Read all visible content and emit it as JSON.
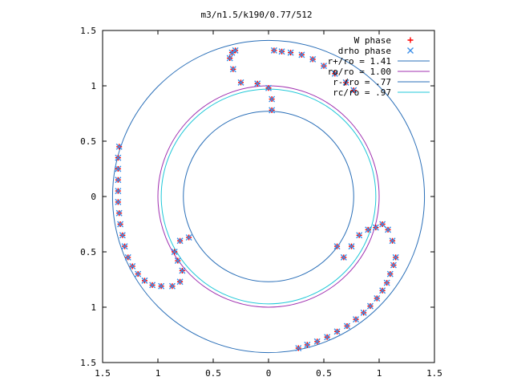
{
  "chart_data": {
    "type": "scatter",
    "title": "m3/n1.5/k190/0.77/512",
    "xlabel": "",
    "ylabel": "",
    "xlim": [
      -1.5,
      1.5
    ],
    "ylim": [
      -1.5,
      1.5
    ],
    "x_ticks": [
      -1.5,
      -1,
      -0.5,
      0,
      0.5,
      1,
      1.5
    ],
    "x_tick_labels": [
      "1.5",
      "1",
      "0.5",
      "0",
      "0.5",
      "1",
      "1.5"
    ],
    "y_ticks": [
      1.5,
      1,
      0.5,
      0,
      -0.5,
      -1,
      -1.5
    ],
    "y_tick_labels": [
      "1.5",
      "1",
      "0.5",
      "0",
      "0.5",
      "1",
      "1.5"
    ],
    "grid": false,
    "legend_position": "top-right",
    "legend": [
      {
        "label": "W phase",
        "marker": "+",
        "color": "#ff0000"
      },
      {
        "label": "drho phase",
        "marker": "x",
        "color": "#3d8fe8"
      },
      {
        "label": "r+/ro = 1.41",
        "style": "line",
        "color": "#2a6fb8"
      },
      {
        "label": "ro/ro = 1.00",
        "style": "line",
        "color": "#a030b0"
      },
      {
        "label": "r-/ro = .77",
        "style": "line",
        "color": "#2a6fb8"
      },
      {
        "label": "rc/ro = .97",
        "style": "line",
        "color": "#20c8d8"
      }
    ],
    "circles": [
      {
        "r": 1.41,
        "color": "#2a6fb8"
      },
      {
        "r": 1.0,
        "color": "#a030b0"
      },
      {
        "r": 0.77,
        "color": "#2a6fb8"
      },
      {
        "r": 0.97,
        "color": "#20c8d8"
      }
    ],
    "series": [
      {
        "name": "W phase",
        "color": "#ff0000",
        "marker": "+",
        "points": [
          [
            0.05,
            1.32
          ],
          [
            0.12,
            1.31
          ],
          [
            0.2,
            1.3
          ],
          [
            0.3,
            1.28
          ],
          [
            0.4,
            1.24
          ],
          [
            0.5,
            1.18
          ],
          [
            0.6,
            1.11
          ],
          [
            0.7,
            1.03
          ],
          [
            0.77,
            0.96
          ],
          [
            -0.33,
            1.3
          ],
          [
            -0.3,
            1.32
          ],
          [
            -0.35,
            1.25
          ],
          [
            -0.32,
            1.15
          ],
          [
            -0.25,
            1.03
          ],
          [
            -0.1,
            1.02
          ],
          [
            0.0,
            0.98
          ],
          [
            0.03,
            0.88
          ],
          [
            0.03,
            0.78
          ],
          [
            -1.35,
            0.45
          ],
          [
            -1.36,
            0.35
          ],
          [
            -1.36,
            0.25
          ],
          [
            -1.36,
            0.15
          ],
          [
            -1.36,
            0.05
          ],
          [
            -1.36,
            -0.05
          ],
          [
            -1.35,
            -0.15
          ],
          [
            -1.34,
            -0.25
          ],
          [
            -1.32,
            -0.35
          ],
          [
            -1.3,
            -0.45
          ],
          [
            -1.27,
            -0.55
          ],
          [
            -1.23,
            -0.63
          ],
          [
            -1.18,
            -0.7
          ],
          [
            -1.12,
            -0.76
          ],
          [
            -1.05,
            -0.8
          ],
          [
            -0.97,
            -0.81
          ],
          [
            -0.87,
            -0.81
          ],
          [
            -0.8,
            -0.77
          ],
          [
            -0.78,
            -0.67
          ],
          [
            -0.82,
            -0.58
          ],
          [
            -0.85,
            -0.5
          ],
          [
            -0.8,
            -0.4
          ],
          [
            -0.72,
            -0.37
          ],
          [
            1.15,
            -0.55
          ],
          [
            1.13,
            -0.62
          ],
          [
            1.1,
            -0.7
          ],
          [
            1.07,
            -0.78
          ],
          [
            1.03,
            -0.85
          ],
          [
            0.98,
            -0.92
          ],
          [
            0.92,
            -0.99
          ],
          [
            0.86,
            -1.05
          ],
          [
            0.79,
            -1.11
          ],
          [
            0.71,
            -1.17
          ],
          [
            0.62,
            -1.22
          ],
          [
            0.53,
            -1.27
          ],
          [
            0.44,
            -1.31
          ],
          [
            0.35,
            -1.34
          ],
          [
            0.27,
            -1.37
          ],
          [
            0.62,
            -0.45
          ],
          [
            0.68,
            -0.55
          ],
          [
            0.75,
            -0.45
          ],
          [
            0.82,
            -0.35
          ],
          [
            0.9,
            -0.3
          ],
          [
            0.97,
            -0.28
          ],
          [
            1.03,
            -0.25
          ],
          [
            1.08,
            -0.3
          ],
          [
            1.12,
            -0.4
          ]
        ]
      },
      {
        "name": "drho phase",
        "color": "#3d8fe8",
        "marker": "x",
        "points": [
          [
            0.05,
            1.32
          ],
          [
            0.12,
            1.31
          ],
          [
            0.2,
            1.3
          ],
          [
            0.3,
            1.28
          ],
          [
            0.4,
            1.24
          ],
          [
            0.5,
            1.18
          ],
          [
            0.6,
            1.11
          ],
          [
            0.7,
            1.03
          ],
          [
            0.77,
            0.96
          ],
          [
            -0.33,
            1.3
          ],
          [
            -0.3,
            1.32
          ],
          [
            -0.35,
            1.25
          ],
          [
            -0.32,
            1.15
          ],
          [
            -0.25,
            1.03
          ],
          [
            -0.1,
            1.02
          ],
          [
            0.0,
            0.98
          ],
          [
            0.03,
            0.88
          ],
          [
            0.03,
            0.78
          ],
          [
            -1.35,
            0.45
          ],
          [
            -1.36,
            0.35
          ],
          [
            -1.36,
            0.25
          ],
          [
            -1.36,
            0.15
          ],
          [
            -1.36,
            0.05
          ],
          [
            -1.36,
            -0.05
          ],
          [
            -1.35,
            -0.15
          ],
          [
            -1.34,
            -0.25
          ],
          [
            -1.32,
            -0.35
          ],
          [
            -1.3,
            -0.45
          ],
          [
            -1.27,
            -0.55
          ],
          [
            -1.23,
            -0.63
          ],
          [
            -1.18,
            -0.7
          ],
          [
            -1.12,
            -0.76
          ],
          [
            -1.05,
            -0.8
          ],
          [
            -0.97,
            -0.81
          ],
          [
            -0.87,
            -0.81
          ],
          [
            -0.8,
            -0.77
          ],
          [
            -0.78,
            -0.67
          ],
          [
            -0.82,
            -0.58
          ],
          [
            -0.85,
            -0.5
          ],
          [
            -0.8,
            -0.4
          ],
          [
            -0.72,
            -0.37
          ],
          [
            1.15,
            -0.55
          ],
          [
            1.13,
            -0.62
          ],
          [
            1.1,
            -0.7
          ],
          [
            1.07,
            -0.78
          ],
          [
            1.03,
            -0.85
          ],
          [
            0.98,
            -0.92
          ],
          [
            0.92,
            -0.99
          ],
          [
            0.86,
            -1.05
          ],
          [
            0.79,
            -1.11
          ],
          [
            0.71,
            -1.17
          ],
          [
            0.62,
            -1.22
          ],
          [
            0.53,
            -1.27
          ],
          [
            0.44,
            -1.31
          ],
          [
            0.35,
            -1.34
          ],
          [
            0.27,
            -1.37
          ],
          [
            0.62,
            -0.45
          ],
          [
            0.68,
            -0.55
          ],
          [
            0.75,
            -0.45
          ],
          [
            0.82,
            -0.35
          ],
          [
            0.9,
            -0.3
          ],
          [
            0.97,
            -0.28
          ],
          [
            1.03,
            -0.25
          ],
          [
            1.08,
            -0.3
          ],
          [
            1.12,
            -0.4
          ]
        ]
      }
    ]
  }
}
